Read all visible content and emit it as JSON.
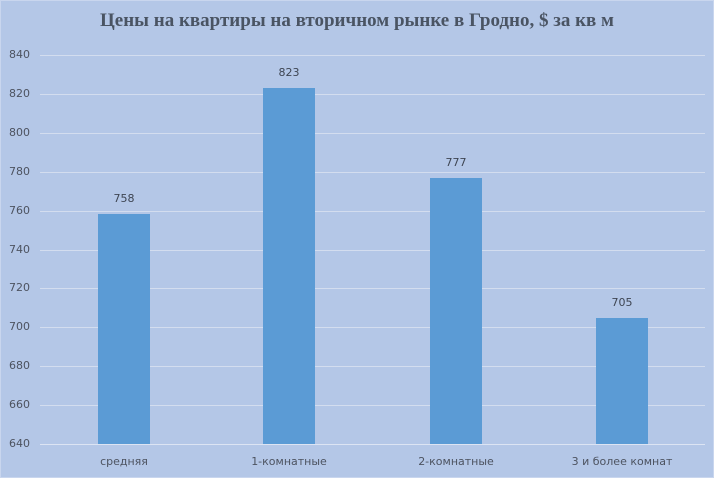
{
  "chart_data": {
    "type": "bar",
    "title": "Цены на квартиры на вторичном рынке в Гродно, $ за кв м",
    "xlabel": "",
    "ylabel": "",
    "categories": [
      "средняя",
      "1-комнатные",
      "2-комнатные",
      "3 и более комнат"
    ],
    "values": [
      758,
      823,
      777,
      705
    ],
    "ylim": [
      640,
      840
    ],
    "yticks": [
      840,
      820,
      800,
      780,
      760,
      740,
      720,
      700,
      680,
      660,
      640
    ],
    "grid": true,
    "legend": null,
    "data_labels": true,
    "colors": {
      "bar": "#5b9bd5",
      "background": "#b4c7e7",
      "gridline": "#d3ddef",
      "title": "#4a5463"
    }
  },
  "labels": {
    "title": "Цены на квартиры на вторичном рынке в Гродно, $ за кв м",
    "bars": [
      "758",
      "823",
      "777",
      "705"
    ],
    "categories": [
      "средняя",
      "1-комнатные",
      "2-комнатные",
      "3 и более комнат"
    ],
    "yticks": [
      "840",
      "820",
      "800",
      "780",
      "760",
      "740",
      "720",
      "700",
      "680",
      "660",
      "640"
    ]
  }
}
